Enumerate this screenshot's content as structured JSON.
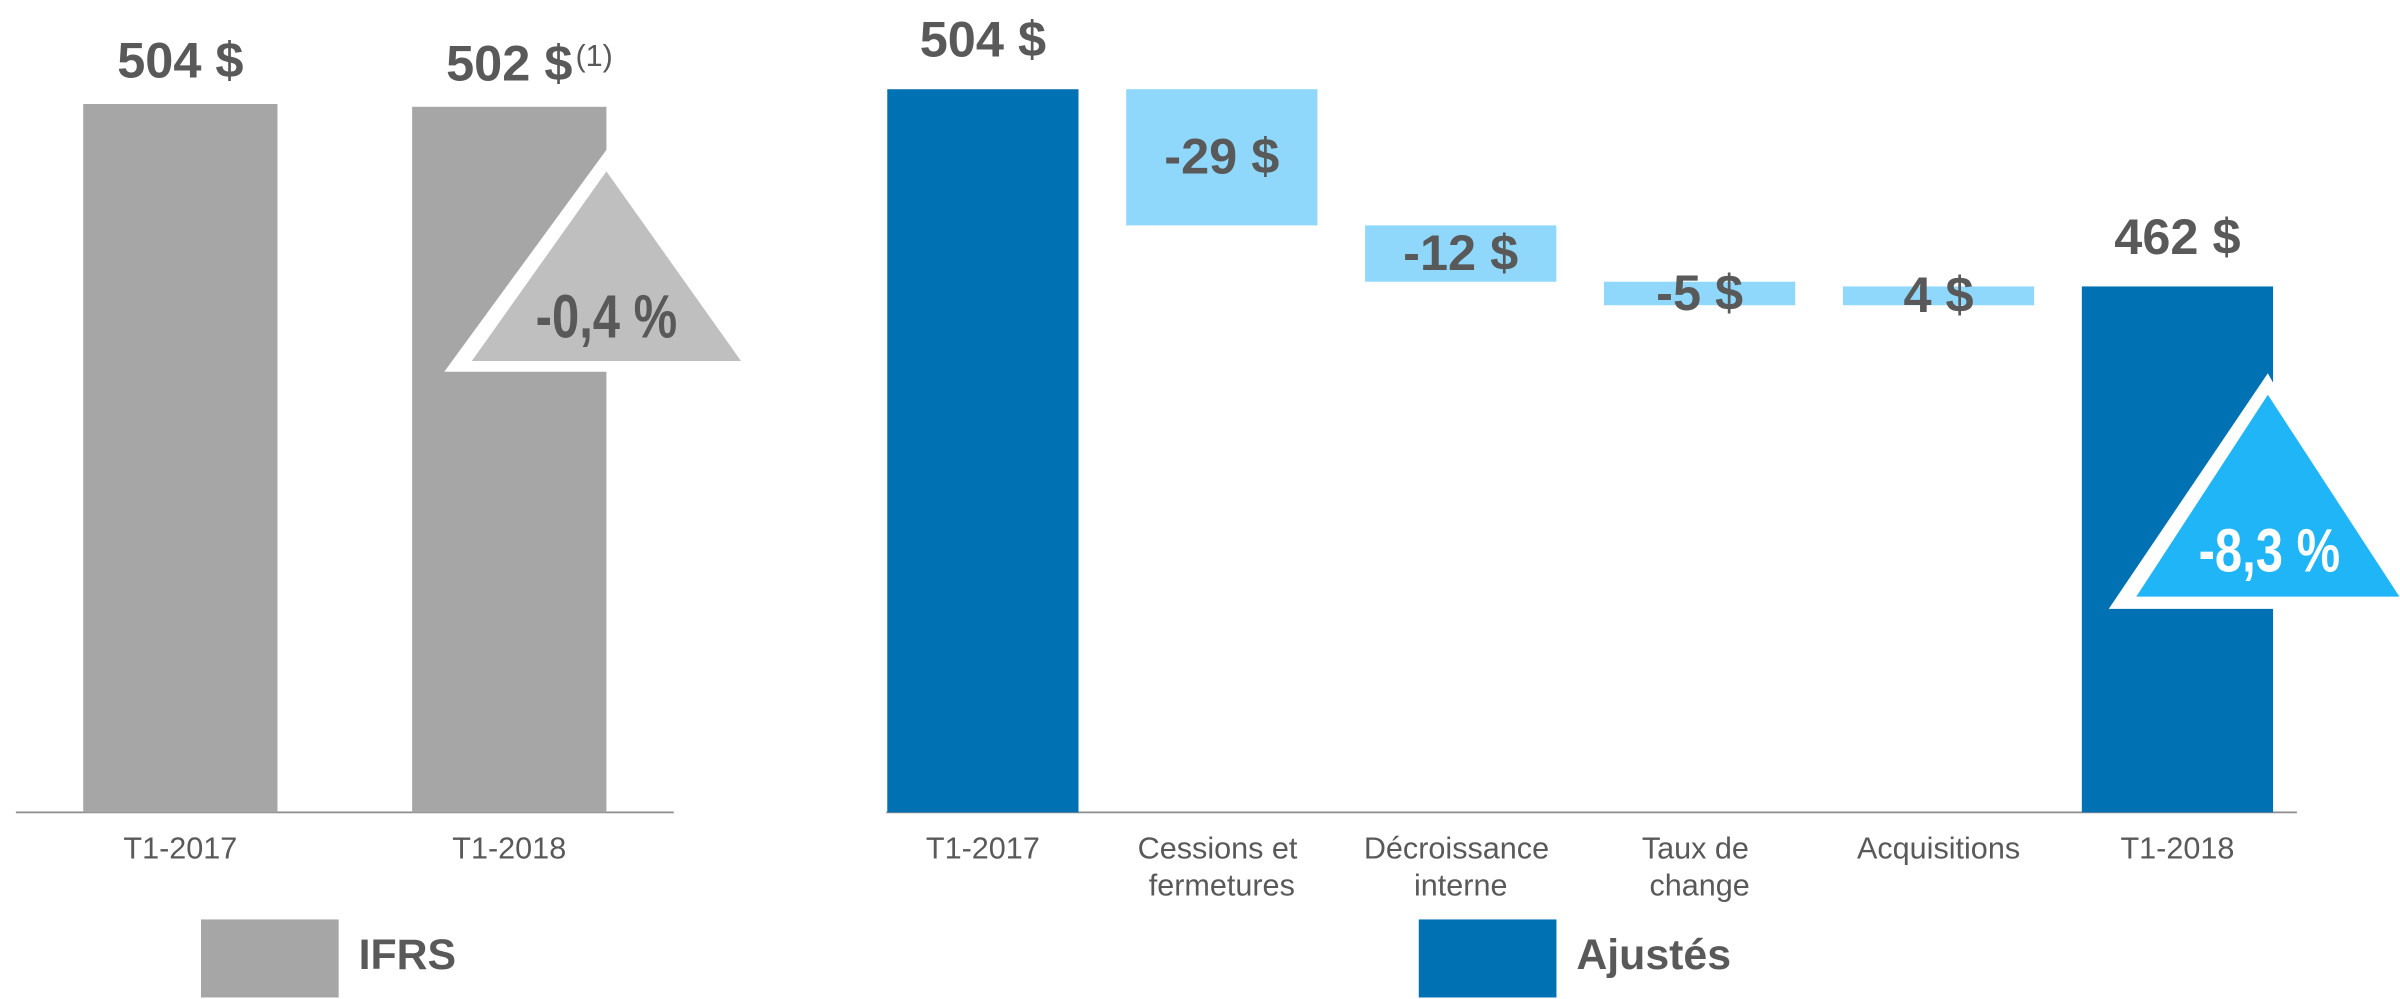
{
  "chart_data": [
    {
      "type": "bar",
      "categories": [
        "T1-2017",
        "T1-2018"
      ],
      "series": [
        {
          "name": "IFRS",
          "color": "#a6a6a6",
          "values": [
            504,
            502
          ],
          "value_labels": [
            "504 $",
            "502 $"
          ]
        }
      ],
      "footnote_marker": "(1)",
      "annotation": "-0,4 %",
      "annotation_color": "#bfbfbf",
      "ylim": [
        0,
        578
      ]
    },
    {
      "type": "waterfall",
      "categories": [
        "T1-2017",
        "Cessions et fermetures",
        "Décroissance interne",
        "Taux de change",
        "Acquisitions",
        "T1-2018"
      ],
      "series": [
        {
          "name": "Ajustés",
          "color": "#0071b3",
          "delta_color": "#8fd8fb",
          "values": [
            504,
            -29,
            -12,
            -5,
            4,
            462
          ],
          "value_labels": [
            "504 $",
            "-29 $",
            "-12 $",
            "-5 $",
            "4 $",
            "462 $"
          ],
          "totals": [
            true,
            false,
            false,
            false,
            false,
            true
          ]
        }
      ],
      "annotation": "-8,3 %",
      "annotation_color": "#1fb5f7",
      "ylim": [
        350,
        523
      ]
    }
  ]
}
